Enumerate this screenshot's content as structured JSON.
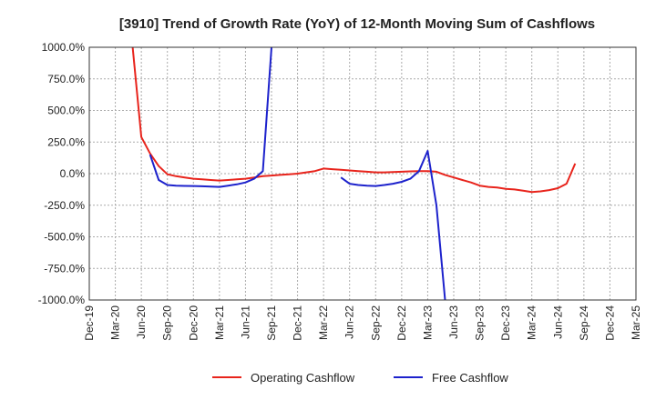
{
  "chart_data": {
    "type": "line",
    "title": "[3910]  Trend of Growth Rate (YoY) of 12-Month Moving Sum of Cashflows",
    "xlabel": "",
    "ylabel": "",
    "x_tick_labels": [
      "Dec-19",
      "Mar-20",
      "Jun-20",
      "Sep-20",
      "Dec-20",
      "Mar-21",
      "Jun-21",
      "Sep-21",
      "Dec-21",
      "Mar-22",
      "Jun-22",
      "Sep-22",
      "Dec-22",
      "Mar-23",
      "Jun-23",
      "Sep-23",
      "Dec-23",
      "Mar-24",
      "Jun-24",
      "Sep-24",
      "Dec-24",
      "Mar-25"
    ],
    "y_tick_labels": [
      "1000.0%",
      "750.0%",
      "500.0%",
      "250.0%",
      "0.0%",
      "-250.0%",
      "-500.0%",
      "-750.0%",
      "-1000.0%"
    ],
    "ylim": [
      -1000,
      1000
    ],
    "grid": true,
    "legend_position": "bottom",
    "series": [
      {
        "name": "Operating Cashflow",
        "color": "#e8241c",
        "points": [
          [
            "May-20",
            1000
          ],
          [
            "Jun-20",
            290
          ],
          [
            "Jul-20",
            160
          ],
          [
            "Aug-20",
            60
          ],
          [
            "Sep-20",
            -5
          ],
          [
            "Oct-20",
            -20
          ],
          [
            "Nov-20",
            -30
          ],
          [
            "Dec-20",
            -40
          ],
          [
            "Jan-21",
            -45
          ],
          [
            "Feb-21",
            -50
          ],
          [
            "Mar-21",
            -55
          ],
          [
            "Apr-21",
            -50
          ],
          [
            "May-21",
            -45
          ],
          [
            "Jun-21",
            -40
          ],
          [
            "Jul-21",
            -30
          ],
          [
            "Aug-21",
            -20
          ],
          [
            "Sep-21",
            -15
          ],
          [
            "Oct-21",
            -10
          ],
          [
            "Nov-21",
            -5
          ],
          [
            "Dec-21",
            0
          ],
          [
            "Jan-22",
            10
          ],
          [
            "Feb-22",
            20
          ],
          [
            "Mar-22",
            40
          ],
          [
            "Apr-22",
            35
          ],
          [
            "May-22",
            30
          ],
          [
            "Jun-22",
            25
          ],
          [
            "Jul-22",
            20
          ],
          [
            "Aug-22",
            15
          ],
          [
            "Sep-22",
            10
          ],
          [
            "Oct-22",
            10
          ],
          [
            "Nov-22",
            12
          ],
          [
            "Dec-22",
            15
          ],
          [
            "Jan-23",
            18
          ],
          [
            "Feb-23",
            20
          ],
          [
            "Mar-23",
            20
          ],
          [
            "Apr-23",
            15
          ],
          [
            "May-23",
            -10
          ],
          [
            "Jun-23",
            -30
          ],
          [
            "Jul-23",
            -50
          ],
          [
            "Aug-23",
            -70
          ],
          [
            "Sep-23",
            -95
          ],
          [
            "Oct-23",
            -105
          ],
          [
            "Nov-23",
            -110
          ],
          [
            "Dec-23",
            -120
          ],
          [
            "Jan-24",
            -125
          ],
          [
            "Feb-24",
            -135
          ],
          [
            "Mar-24",
            -145
          ],
          [
            "Apr-24",
            -140
          ],
          [
            "May-24",
            -130
          ],
          [
            "Jun-24",
            -115
          ],
          [
            "Jul-24",
            -80
          ],
          [
            "Aug-24",
            80
          ]
        ]
      },
      {
        "name": "Free Cashflow",
        "color": "#1d22cc",
        "segments": [
          [
            [
              "Jul-20",
              150
            ],
            [
              "Aug-20",
              -50
            ],
            [
              "Sep-20",
              -90
            ],
            [
              "Oct-20",
              -95
            ],
            [
              "Nov-20",
              -97
            ],
            [
              "Dec-20",
              -98
            ],
            [
              "Jan-21",
              -100
            ],
            [
              "Feb-21",
              -102
            ],
            [
              "Mar-21",
              -105
            ],
            [
              "Apr-21",
              -95
            ],
            [
              "May-21",
              -85
            ],
            [
              "Jun-21",
              -70
            ],
            [
              "Jul-21",
              -40
            ],
            [
              "Aug-21",
              20
            ],
            [
              "Sep-21",
              1000
            ]
          ],
          [
            [
              "May-22",
              -30
            ],
            [
              "Jun-22",
              -80
            ],
            [
              "Jul-22",
              -90
            ],
            [
              "Aug-22",
              -95
            ],
            [
              "Sep-22",
              -98
            ],
            [
              "Oct-22",
              -90
            ],
            [
              "Nov-22",
              -80
            ],
            [
              "Dec-22",
              -65
            ],
            [
              "Jan-23",
              -40
            ],
            [
              "Feb-23",
              20
            ],
            [
              "Mar-23",
              180
            ],
            [
              "Apr-23",
              -250
            ],
            [
              "May-23",
              -1000
            ]
          ]
        ]
      }
    ]
  }
}
